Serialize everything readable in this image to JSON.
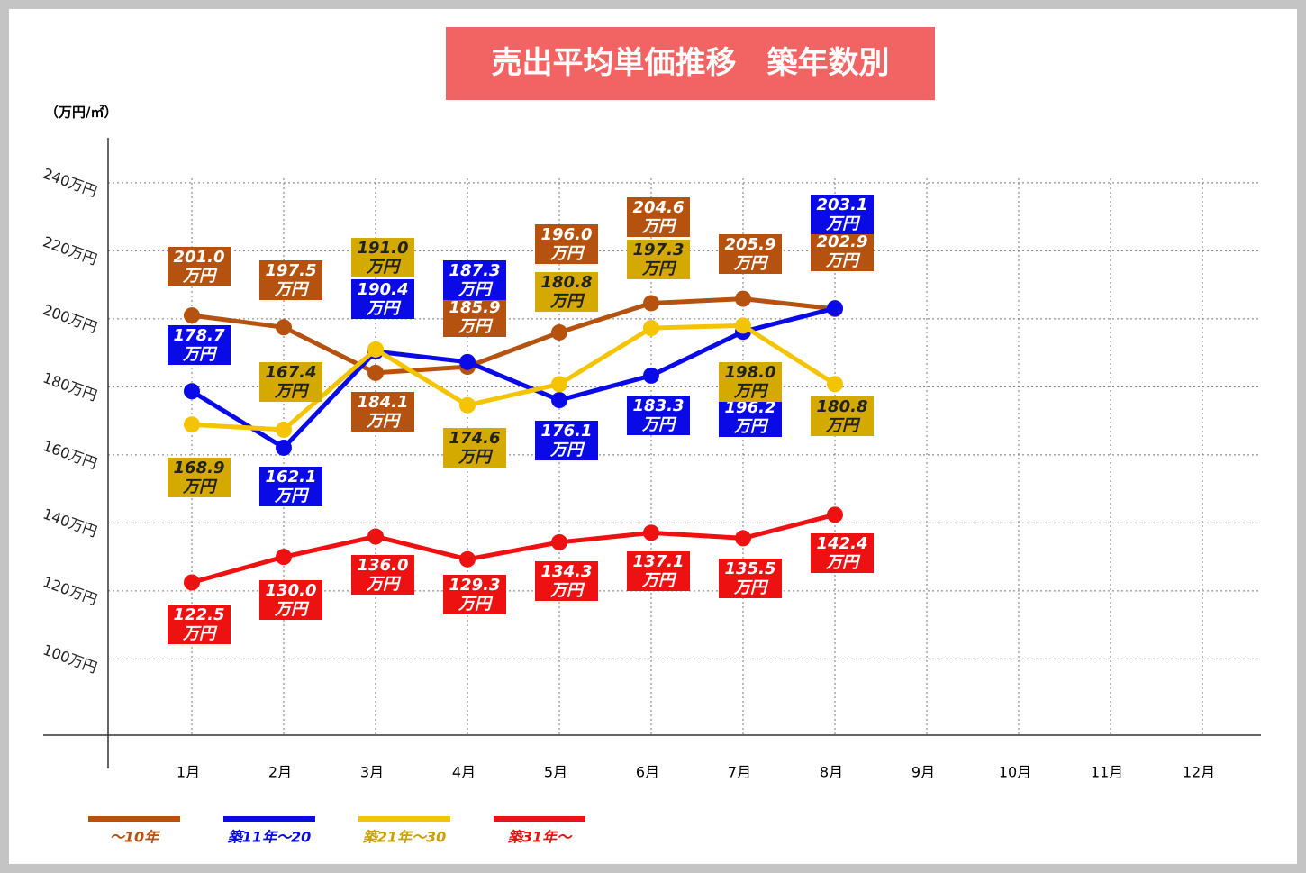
{
  "chart_data": {
    "type": "line",
    "title": "売出平均単価推移　築年数別",
    "y_label": "（万円/㎡）",
    "categories": [
      "1月",
      "2月",
      "3月",
      "4月",
      "5月",
      "6月",
      "7月",
      "8月",
      "9月",
      "10月",
      "11月",
      "12月"
    ],
    "ylim": [
      77.6,
      253.2
    ],
    "yticks": [
      {
        "value": 100,
        "label": "100万円"
      },
      {
        "value": 120,
        "label": "120万円"
      },
      {
        "value": 140,
        "label": "140万円"
      },
      {
        "value": 160,
        "label": "160万円"
      },
      {
        "value": 180,
        "label": "180万円"
      },
      {
        "value": 200,
        "label": "200万円"
      },
      {
        "value": 220,
        "label": "220万円"
      },
      {
        "value": 240,
        "label": "240万円"
      }
    ],
    "grid": true,
    "series": [
      {
        "name": "〜10年",
        "color": "#b5520f",
        "values": [
          201.0,
          197.5,
          184.1,
          185.9,
          196.0,
          204.6,
          205.9,
          202.9,
          null,
          null,
          null,
          null
        ],
        "value_labels": [
          "201.0万円",
          "197.5万円",
          "184.1万円",
          "185.9万円",
          "196.0万円",
          "204.6万円",
          "205.9万円",
          "202.9万円",
          null,
          null,
          null,
          null
        ]
      },
      {
        "name": "築11年〜20",
        "color": "#0a0ae6",
        "values": [
          178.7,
          162.1,
          190.4,
          187.3,
          176.1,
          183.3,
          196.2,
          203.1,
          null,
          null,
          null,
          null
        ],
        "value_labels": [
          "178.7万円",
          "162.1万円",
          "190.4万円",
          "187.3万円",
          "176.1万円",
          "183.3万円",
          "196.2万円",
          "203.1万円",
          null,
          null,
          null,
          null
        ]
      },
      {
        "name": "築21年〜30",
        "color": "#f5c400",
        "values": [
          168.9,
          167.4,
          191.0,
          174.6,
          180.8,
          197.3,
          198.0,
          180.8,
          null,
          null,
          null,
          null
        ],
        "value_labels": [
          "168.9万円",
          "167.4万円",
          "191.0万円",
          "174.6万円",
          "180.8万円",
          "197.3万円",
          "198.0万円",
          "180.8万円",
          null,
          null,
          null,
          null
        ]
      },
      {
        "name": "築31年〜",
        "color": "#ee1111",
        "values": [
          122.5,
          130.0,
          136.0,
          129.3,
          134.3,
          137.1,
          135.5,
          142.4,
          null,
          null,
          null,
          null
        ],
        "value_labels": [
          "122.5万円",
          "130.0万円",
          "136.0万円",
          "129.3万円",
          "134.3万円",
          "137.1万円",
          "135.5万円",
          "142.4万円",
          null,
          null,
          null,
          null
        ]
      }
    ]
  }
}
